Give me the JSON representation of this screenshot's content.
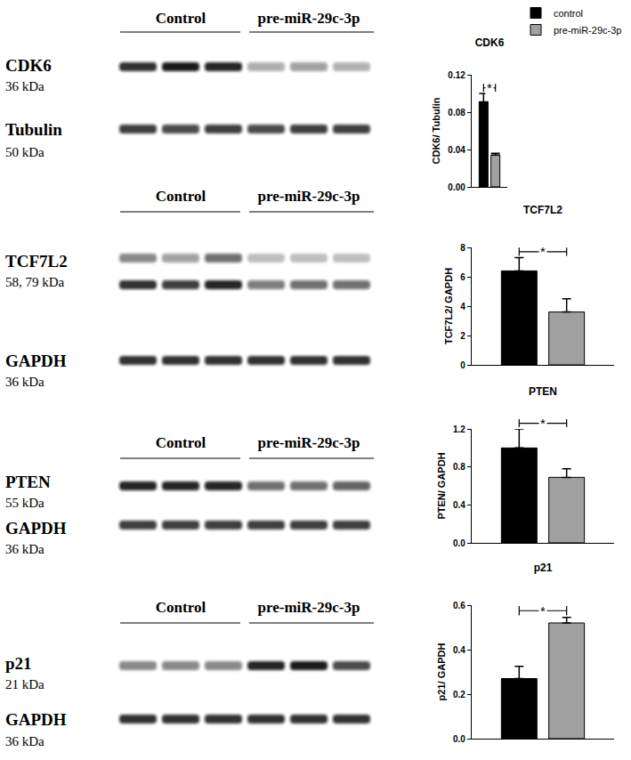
{
  "chart_data": [
    {
      "type": "bar",
      "title": "CDK6",
      "y_label": "CDK6/ Tubulin",
      "categories": [
        null
      ],
      "series": [
        {
          "name": "control",
          "color": "#000000",
          "values": [
            0.091
          ],
          "errors": [
            0.009
          ]
        },
        {
          "name": "pre-miR-29c-3p",
          "color": "#a0a0a0",
          "values": [
            0.034
          ],
          "errors": [
            0.002
          ]
        }
      ],
      "ylim": [
        0,
        0.12
      ],
      "yticks": [
        {
          "value": 0,
          "label": "0.00"
        },
        0.04,
        0.08,
        0.12
      ],
      "tick_labels": "y",
      "legend": "top right",
      "annotations": [
        {
          "text": "*"
        }
      ]
    },
    {
      "type": "bar",
      "title": "TCF7L2",
      "y_label": "TCF7L2/ GAPDH",
      "categories": [
        null
      ],
      "series": [
        {
          "name": "control",
          "color": "#000000",
          "values": [
            6.4
          ],
          "errors": [
            0.9
          ]
        },
        {
          "name": "pre-miR-29c-3p",
          "color": "#a0a0a0",
          "values": [
            3.6
          ],
          "errors": [
            0.9
          ]
        }
      ],
      "ylim": [
        0,
        8
      ],
      "yticks": [
        0,
        2,
        4,
        6,
        8
      ],
      "tick_labels": "y",
      "annotations": [
        {
          "text": "*"
        }
      ]
    },
    {
      "type": "bar",
      "title": "PTEN",
      "y_label": "PTEN/ GAPDH",
      "categories": [
        null
      ],
      "series": [
        {
          "name": "control",
          "color": "#000000",
          "values": [
            1.0
          ],
          "errors": [
            0.2
          ]
        },
        {
          "name": "pre-miR-29c-3p",
          "color": "#a0a0a0",
          "values": [
            0.69
          ],
          "errors": [
            0.09
          ]
        }
      ],
      "ylim": [
        0,
        1.2
      ],
      "yticks": [
        {
          "value": 0,
          "label": "0.0"
        },
        0.4,
        0.8,
        1.2
      ],
      "tick_labels": "y",
      "annotations": [
        {
          "text": "*"
        }
      ]
    },
    {
      "type": "bar",
      "title": "p21",
      "y_label": "p21/ GAPDH",
      "categories": [
        null
      ],
      "series": [
        {
          "name": "control",
          "color": "#000000",
          "values": [
            0.27
          ],
          "errors": [
            0.055
          ]
        },
        {
          "name": "pre-miR-29c-3p",
          "color": "#a0a0a0",
          "values": [
            0.52
          ],
          "errors": [
            0.025
          ]
        }
      ],
      "ylim": [
        0,
        0.6
      ],
      "yticks": [
        {
          "value": 0,
          "label": "0.0"
        },
        0.2,
        0.4,
        0.6
      ],
      "tick_labels": "y",
      "annotations": [
        {
          "text": "*"
        }
      ]
    }
  ],
  "blots": [
    {
      "groups": [
        "Control",
        "pre-miR-29c-3p"
      ],
      "rows": [
        {
          "label": "CDK6",
          "size": "36 kDa"
        },
        {
          "label": "Tubulin",
          "size": "50 kDa"
        }
      ]
    },
    {
      "groups": [
        "Control",
        "pre-miR-29c-3p"
      ],
      "rows": [
        {
          "label": "TCF7L2",
          "size": "58, 79 kDa"
        },
        {
          "label": "GAPDH",
          "size": "36 kDa"
        }
      ]
    },
    {
      "groups": [
        "Control",
        "pre-miR-29c-3p"
      ],
      "rows": [
        {
          "label": "PTEN",
          "size": "55 kDa"
        },
        {
          "label": "GAPDH",
          "size": "36 kDa"
        }
      ]
    },
    {
      "groups": [
        "Control",
        "pre-miR-29c-3p"
      ],
      "rows": [
        {
          "label": "p21",
          "size": "21 kDa"
        },
        {
          "label": "GAPDH",
          "size": "36 kDa"
        }
      ]
    }
  ]
}
